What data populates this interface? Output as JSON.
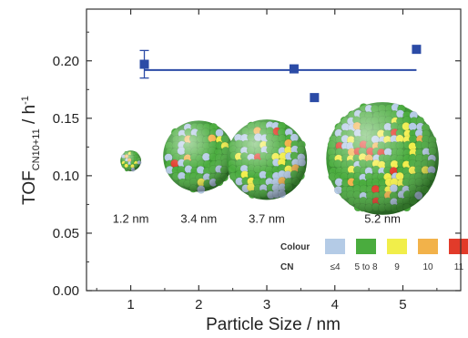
{
  "chart_data": {
    "type": "scatter",
    "xlabel": "Particle Size / nm",
    "ylabel_main": "TOF",
    "ylabel_sub": "CN10+11",
    "ylabel_unit": " / h",
    "ylabel_sup": "-1",
    "xlim": [
      0.35,
      5.85
    ],
    "ylim": [
      0.0,
      0.245
    ],
    "x_ticks": [
      "1",
      "2",
      "3",
      "4",
      "5"
    ],
    "x_tick_values": [
      1,
      2,
      3,
      4,
      5
    ],
    "y_ticks": [
      "0.00",
      "0.05",
      "0.10",
      "0.15",
      "0.20"
    ],
    "y_tick_values": [
      0.0,
      0.05,
      0.1,
      0.15,
      0.2
    ],
    "series": [
      {
        "x": [
          1.2,
          3.4,
          3.7,
          5.2
        ],
        "y": [
          0.197,
          0.193,
          0.168,
          0.21
        ],
        "error": [
          0.012,
          0.0,
          0.0,
          0.0
        ]
      }
    ],
    "fit_line": {
      "x": [
        1.2,
        5.2
      ],
      "y": [
        0.192,
        0.192
      ]
    },
    "marker_color": "#2b4ba6",
    "line_color": "#2b4ba6",
    "particles": [
      {
        "label": "1.2 nm",
        "x": 1.0,
        "y": 0.113,
        "r_data": 0.009,
        "seed": 3
      },
      {
        "label": "3.4 nm",
        "x": 2.0,
        "y": 0.117,
        "r_data": 0.031,
        "seed": 11
      },
      {
        "label": "3.7 nm",
        "x": 3.0,
        "y": 0.114,
        "r_data": 0.035,
        "seed": 17
      },
      {
        "label": "5.2 nm",
        "x": 4.7,
        "y": 0.115,
        "r_data": 0.049,
        "seed": 29
      }
    ],
    "label_y": 0.059,
    "legend": {
      "colour_header": "Colour",
      "cn_header": "CN",
      "items": [
        {
          "cn": "≤4",
          "color": "#b4cbe6"
        },
        {
          "cn": "5 to 8",
          "color": "#4aac3e"
        },
        {
          "cn": "9",
          "color": "#f1ee4a"
        },
        {
          "cn": "10",
          "color": "#f2b24a"
        },
        {
          "cn": "11",
          "color": "#e23b2a"
        }
      ]
    }
  }
}
